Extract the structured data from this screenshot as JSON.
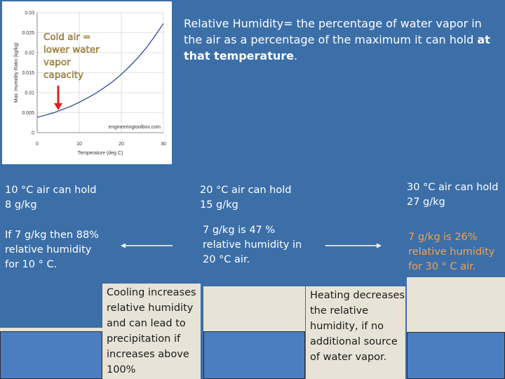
{
  "chart_data": {
    "type": "line",
    "ylabel": "Max. Humidity Ratio (kg/kg)",
    "xlabel": "Temperature (deg C)",
    "x_ticks": [
      "0",
      "10",
      "20",
      "30"
    ],
    "y_ticks": [
      "0",
      "0.005",
      "0.01",
      "0.015",
      "0.02",
      "0.025",
      "0.03"
    ],
    "xlim": [
      0,
      30
    ],
    "ylim": [
      0,
      0.03
    ],
    "series": [
      {
        "x": [
          0,
          2,
          4,
          6,
          8,
          10,
          12,
          14,
          16,
          18,
          20,
          22,
          24,
          26,
          28,
          30
        ],
        "values": [
          0.0038,
          0.0044,
          0.005,
          0.0058,
          0.0066,
          0.0076,
          0.0087,
          0.0099,
          0.0113,
          0.0128,
          0.0146,
          0.0166,
          0.0188,
          0.0213,
          0.0242,
          0.0273
        ]
      }
    ],
    "watermark": "engineeringtoolbox.com",
    "annotation": "Cold air =\nlower water\nvapor\ncapacity",
    "arrow_x": 5
  },
  "definition": {
    "lead": "Relative Humidity= the percentage of water vapor in the air as a percentage of the maximum it can hold ",
    "bold": "at that temperature",
    "tail": "."
  },
  "capacity": {
    "t10": "10 °C air can hold\n8 g/kg",
    "t20": "20 °C air can hold\n15 g/kg",
    "t30": "30 °C air can hold\n27 g/kg"
  },
  "rh": {
    "t10": "If 7 g/kg  then 88%\nrelative humidity\nfor 10 ° C.",
    "t20": "7 g/kg is 47 %\nrelative humidity in\n20 °C air.",
    "t30": "7 g/kg is 26%\nrelative humidity\nfor 30 ° C air."
  },
  "notes": {
    "cooling": "Cooling increases\nrelative humidity\nand can lead to\nprecipitation if\nincreases above\n100%",
    "heating": "Heating decreases\nthe relative\nhumidity, if no\nadditional source\nof water vapor."
  },
  "colors": {
    "background": "#3c6fa8",
    "curve": "#1f3f8f",
    "arrow": "#e02020",
    "orange_text": "#f5a050",
    "annotation_text": "#c8a33a"
  }
}
